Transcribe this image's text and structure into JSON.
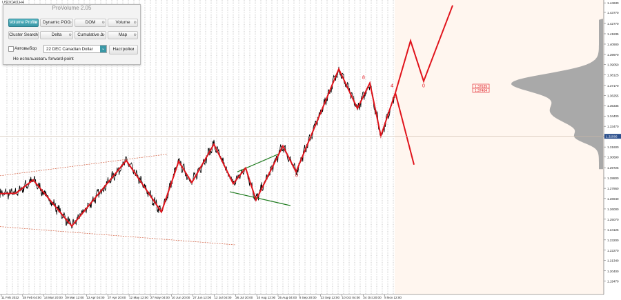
{
  "window": {
    "symbol": "USDCAD,H4"
  },
  "panel": {
    "title": "ProVolume 2.05",
    "buttons": [
      {
        "label": "Volume Profile",
        "active": true
      },
      {
        "label": "Dynamic POC",
        "active": false
      },
      {
        "label": "DOM",
        "active": false
      },
      {
        "label": "Volume",
        "active": false
      },
      {
        "label": "Cluster Search",
        "active": false
      },
      {
        "label": "Delta",
        "active": false
      },
      {
        "label": "Cumulative Δ",
        "active": false
      },
      {
        "label": "Map",
        "active": false
      }
    ],
    "auto_label": "Автовыбор",
    "instrument": "22 DEC Canadian Dollar",
    "settings_label": "Настройки",
    "forward_label": "Не использовать forward-point"
  },
  "colors": {
    "zigzag": "#e0131b",
    "price": "#000000",
    "channel": "#d25a3a",
    "wedge": "#1d7a1d",
    "profile": "#a9a9a9",
    "background": "#fff6ef",
    "current_price_box": "#2b4f8c"
  },
  "chart_data": {
    "type": "line",
    "title": "",
    "ylim": [
      1.1945,
      1.4464
    ],
    "y_ticks": [
      "1.44630",
      "1.43770",
      "1.42770",
      "1.41835",
      "1.40900",
      "1.39970",
      "1.39050",
      "1.38125",
      "1.37170",
      "1.36255",
      "1.35335",
      "1.34400",
      "1.33470",
      "1.32540",
      "1.31600",
      "1.30690",
      "1.29725",
      "1.28800",
      "1.27860",
      "1.26940",
      "1.26000",
      "1.25070",
      "1.24125",
      "1.23200",
      "1.22270",
      "1.21340",
      "1.20400",
      "1.19470"
    ],
    "current_price": "1.32566",
    "profile_labels": [
      "1.37639",
      "1.37404"
    ],
    "x_ticks": [
      "11 Feb 2022",
      "28 Feb 04:00",
      "14 Mar 20:00",
      "29 Mar 12:00",
      "13 Apr 04:00",
      "27 Apr 20:00",
      "12 May 12:00",
      "27 May 04:00",
      "10 Jun 20:00",
      "27 Jun 12:00",
      "12 Jul 04:00",
      "26 Jul 20:00",
      "10 Aug 12:00",
      "25 Aug 04:00",
      "8 Sep 20:00",
      "23 Sep 12:00",
      "10 Oct 04:00",
      "24 Oct 20:00",
      "8 Nov 12:00"
    ],
    "zigzag": [
      [
        0,
        1.2738
      ],
      [
        23,
        1.2742
      ],
      [
        48,
        1.2862
      ],
      [
        104,
        1.2445
      ],
      [
        183,
        1.3038
      ],
      [
        234,
        1.2572
      ],
      [
        259,
        1.303
      ],
      [
        278,
        1.2838
      ],
      [
        310,
        1.3185
      ],
      [
        338,
        1.2828
      ],
      [
        356,
        1.297
      ],
      [
        371,
        1.268
      ],
      [
        410,
        1.317
      ],
      [
        429,
        1.2935
      ],
      [
        491,
        1.3865
      ],
      [
        518,
        1.3508
      ],
      [
        536,
        1.3738
      ],
      [
        552,
        1.326
      ],
      [
        573,
        1.365
      ]
    ],
    "projection_up": [
      [
        573,
        1.365
      ],
      [
        595,
        1.412
      ],
      [
        614,
        1.3755
      ],
      [
        656,
        1.444
      ]
    ],
    "projection_down": [
      [
        573,
        1.365
      ],
      [
        600,
        1.3
      ]
    ],
    "zigzag_labels": [
      {
        "x": 430,
        "y": 1.289,
        "text": "0"
      },
      {
        "x": 527,
        "y": 1.3775,
        "text": "8"
      },
      {
        "x": 568,
        "y": 1.37,
        "text": "4"
      },
      {
        "x": 614,
        "y": 1.37,
        "text": "0"
      }
    ],
    "channel_top": [
      [
        0,
        1.29
      ],
      [
        242,
        1.3095
      ]
    ],
    "channel_bottom": [
      [
        0,
        1.244
      ],
      [
        342,
        1.2275
      ]
    ],
    "wedge_top": [
      [
        344,
        1.2935
      ],
      [
        405,
        1.31
      ]
    ],
    "wedge_bottom": [
      [
        333,
        1.2755
      ],
      [
        421,
        1.263
      ]
    ]
  }
}
